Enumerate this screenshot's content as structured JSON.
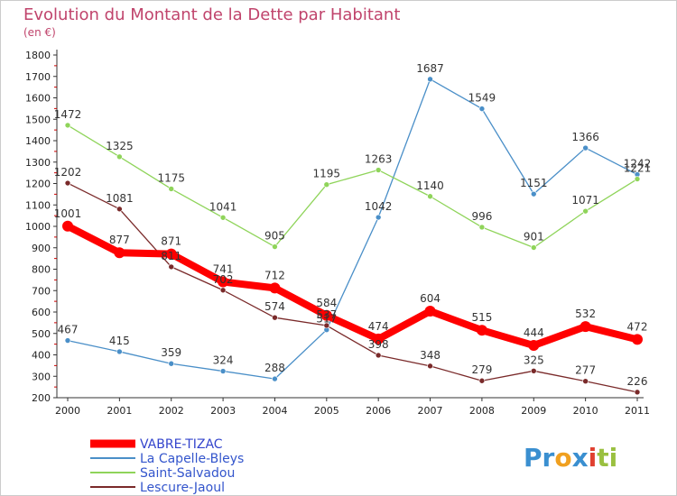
{
  "title": "Evolution du Montant de la Dette par Habitant",
  "subtitle": "(en €)",
  "brand": {
    "letters": [
      {
        "ch": "P",
        "color": "#3a8fd0"
      },
      {
        "ch": "r",
        "color": "#3a8fd0"
      },
      {
        "ch": "o",
        "color": "#f0a020"
      },
      {
        "ch": "x",
        "color": "#3a8fd0"
      },
      {
        "ch": "i",
        "color": "#e04030"
      },
      {
        "ch": "t",
        "color": "#9ac040"
      },
      {
        "ch": "i",
        "color": "#9ac040"
      }
    ]
  },
  "chart_data": {
    "type": "line",
    "title": "Evolution du Montant de la Dette par Habitant",
    "subtitle": "(en €)",
    "x": [
      2000,
      2001,
      2002,
      2003,
      2004,
      2005,
      2006,
      2007,
      2008,
      2009,
      2010,
      2011
    ],
    "ylim": [
      200,
      1800
    ],
    "yticks": [
      200,
      300,
      400,
      500,
      600,
      700,
      800,
      900,
      1000,
      1100,
      1200,
      1300,
      1400,
      1500,
      1600,
      1700,
      1800
    ],
    "grid": false,
    "legend": "bottom-left",
    "series": [
      {
        "name": "VABRE-TIZAC",
        "color": "#ff0000",
        "values": [
          1001,
          877,
          871,
          741,
          712,
          584,
          474,
          604,
          515,
          444,
          532,
          472
        ]
      },
      {
        "name": "La Capelle-Bleys",
        "color": "#4a8fc8",
        "values": [
          467,
          415,
          359,
          324,
          288,
          517,
          1042,
          1687,
          1549,
          1151,
          1366,
          1242
        ]
      },
      {
        "name": "Saint-Salvadou",
        "color": "#8fd45a",
        "values": [
          1472,
          1325,
          1175,
          1041,
          905,
          1195,
          1263,
          1140,
          996,
          901,
          1071,
          1221
        ]
      },
      {
        "name": "Lescure-Jaoul",
        "color": "#7a2a2a",
        "values": [
          1202,
          1081,
          811,
          702,
          574,
          537,
          398,
          348,
          279,
          325,
          277,
          226
        ]
      }
    ]
  }
}
